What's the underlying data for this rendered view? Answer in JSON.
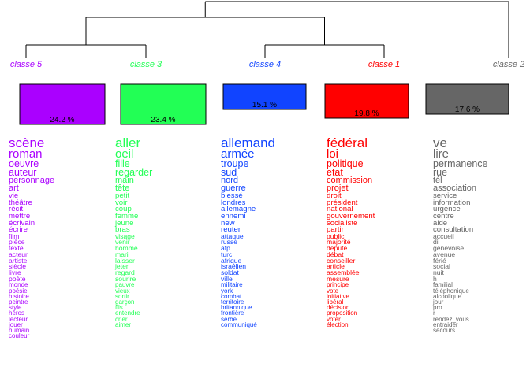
{
  "chart_data": {
    "type": "dendrogram",
    "classes": [
      {
        "id": "classe5",
        "label": "classe  5",
        "percent": "24.2 %",
        "share": 24.2,
        "color": "#aa00ff",
        "words": [
          "scène",
          "roman",
          "oeuvre",
          "auteur",
          "personnage",
          "art",
          "vie",
          "théâtre",
          "récit",
          "mettre",
          "écrivain",
          "écrire",
          "film",
          "pièce",
          "texte",
          "acteur",
          "artiste",
          "siècle",
          "livre",
          "poète",
          "monde",
          "poésie",
          "histoire",
          "peintre",
          "style",
          "héros",
          "lecteur",
          "jouer",
          "humain",
          "couleur"
        ]
      },
      {
        "id": "classe3",
        "label": "classe  3",
        "percent": "23.4 %",
        "share": 23.4,
        "color": "#22ff55",
        "words": [
          "aller",
          "oeil",
          "fille",
          "regarder",
          "main",
          "tête",
          "petit",
          "voir",
          "coup",
          "femme",
          "jeune",
          "bras",
          "visage",
          "venir",
          "homme",
          "mari",
          "laisser",
          "jeter",
          "regard",
          "sourire",
          "pauvre",
          "vieux",
          "sortir",
          "garçon",
          "fils",
          "entendre",
          "crier",
          "aimer"
        ]
      },
      {
        "id": "classe4",
        "label": "classe  4",
        "percent": "15.1 %",
        "share": 15.1,
        "color": "#1144ff",
        "words": [
          "allemand",
          "armée",
          "troupe",
          "sud",
          "nord",
          "guerre",
          "blessé",
          "londres",
          "allemagne",
          "ennemi",
          "new",
          "reuter",
          "attaque",
          "russe",
          "afp",
          "turc",
          "afrique",
          "israélien",
          "soldat",
          "ville",
          "militaire",
          "york",
          "combat",
          "territoire",
          "britannique",
          "frontière",
          "serbe",
          "communiqué"
        ]
      },
      {
        "id": "classe1",
        "label": "classe  1",
        "percent": "19.8 %",
        "share": 19.8,
        "color": "#ff0000",
        "words": [
          "fédéral",
          "loi",
          "politique",
          "etat",
          "commission",
          "projet",
          "droit",
          "président",
          "national",
          "gouvernement",
          "socialiste",
          "partir",
          "public",
          "majorité",
          "député",
          "débat",
          "conseiller",
          "article",
          "assemblée",
          "mesure",
          "principe",
          "vote",
          "initiative",
          "libéral",
          "décision",
          "proposition",
          "voter",
          "élection"
        ]
      },
      {
        "id": "classe2",
        "label": "classe  2",
        "percent": "17.6 %",
        "share": 17.6,
        "color": "#666666",
        "words": [
          "ve",
          "lire",
          "permanence",
          "rue",
          "tél",
          "association",
          "service",
          "information",
          "urgence",
          "centre",
          "aide",
          "consultation",
          "accueil",
          "di",
          "genevoise",
          "avenue",
          "férié",
          "social",
          "nuit",
          "h",
          "familial",
          "téléphonique",
          "alcoolique",
          "jour",
          "pro",
          "r",
          "rendez_vous",
          "entraider",
          "secours"
        ]
      }
    ]
  }
}
